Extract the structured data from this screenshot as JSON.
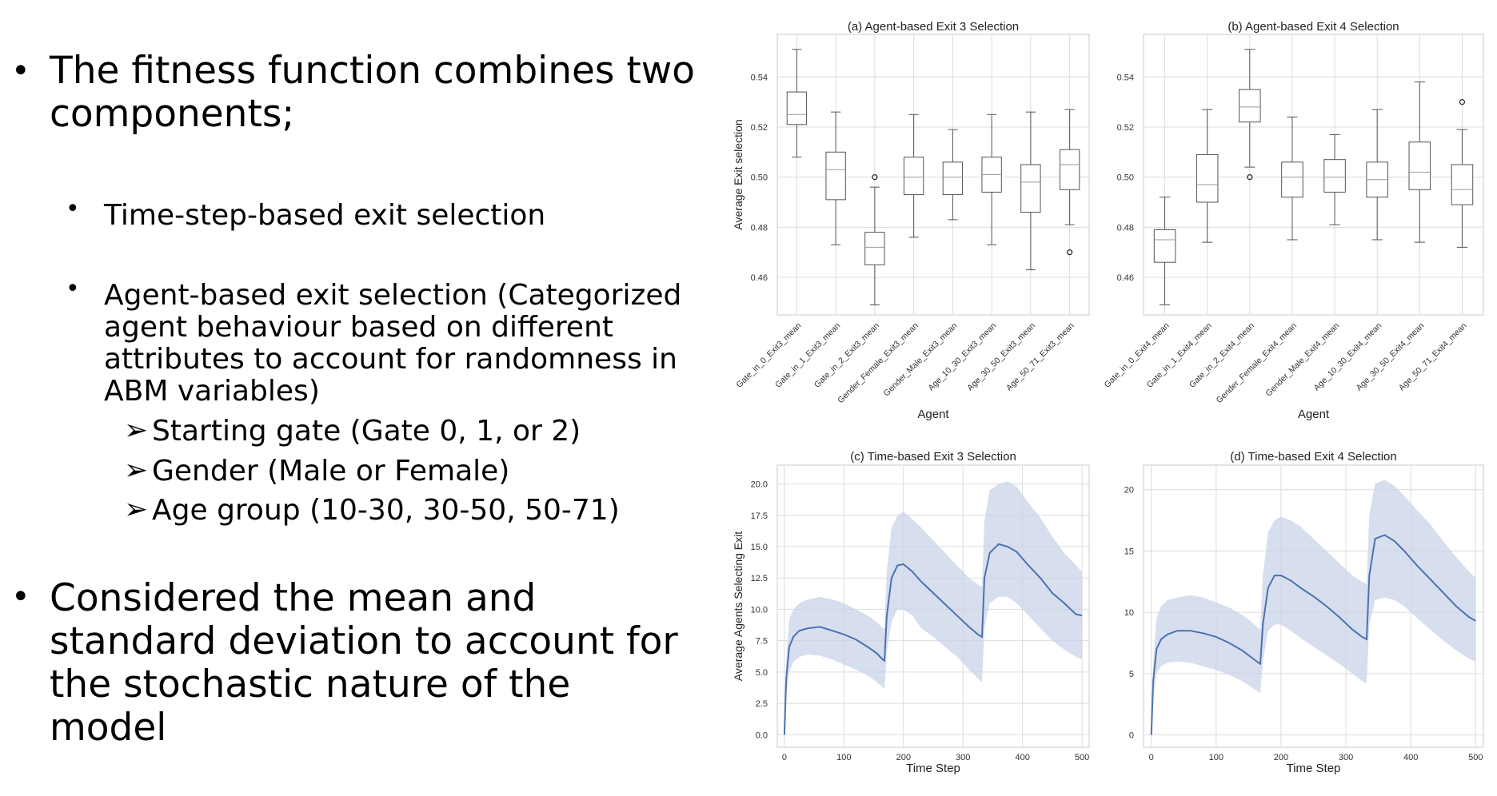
{
  "slide": {
    "bullets": [
      {
        "text": "The fitness function combines two components;",
        "level": 1
      },
      {
        "text": "Time-step-based exit selection",
        "level": 2
      },
      {
        "text": "Agent-based exit selection (Categorized agent behaviour based on different attributes to account for randomness in ABM variables)",
        "level": 2
      },
      {
        "text": "Starting gate (Gate 0, 1, or 2)",
        "level": 3
      },
      {
        "text": "Gender (Male or Female)",
        "level": 3
      },
      {
        "text": "Age group (10-30, 30-50, 50-71)",
        "level": 3
      },
      {
        "text": "Considered the mean and standard deviation to account for the stochastic nature of the model",
        "level": 1
      }
    ]
  },
  "chart_data": [
    {
      "type": "box",
      "title": "(a) Agent-based Exit 3 Selection",
      "xlabel": "Agent",
      "ylabel": "Average Exit selection",
      "ylim": [
        0.445,
        0.557
      ],
      "yticks": [
        "0.46",
        "0.48",
        "0.50",
        "0.52",
        "0.54"
      ],
      "grid": true,
      "categories": [
        "Gate_in_0_Exit3_mean",
        "Gate_in_1_Exit3_mean",
        "Gate_in_2_Exit3_mean",
        "Gender_Female_Exit3_mean",
        "Gender_Male_Exit3_mean",
        "Age_10_30_Exit3_mean",
        "Age_30_50_Exit3_mean",
        "Age_50_71_Exit3_mean"
      ],
      "boxes": [
        {
          "whislo": 0.508,
          "q1": 0.521,
          "med": 0.525,
          "q3": 0.534,
          "whishi": 0.551,
          "fliers": []
        },
        {
          "whislo": 0.473,
          "q1": 0.491,
          "med": 0.503,
          "q3": 0.51,
          "whishi": 0.526,
          "fliers": []
        },
        {
          "whislo": 0.449,
          "q1": 0.465,
          "med": 0.472,
          "q3": 0.478,
          "whishi": 0.496,
          "fliers": [
            0.5
          ]
        },
        {
          "whislo": 0.476,
          "q1": 0.493,
          "med": 0.5,
          "q3": 0.508,
          "whishi": 0.525,
          "fliers": []
        },
        {
          "whislo": 0.483,
          "q1": 0.493,
          "med": 0.5,
          "q3": 0.506,
          "whishi": 0.519,
          "fliers": []
        },
        {
          "whislo": 0.473,
          "q1": 0.494,
          "med": 0.501,
          "q3": 0.508,
          "whishi": 0.525,
          "fliers": []
        },
        {
          "whislo": 0.463,
          "q1": 0.486,
          "med": 0.498,
          "q3": 0.505,
          "whishi": 0.526,
          "fliers": []
        },
        {
          "whislo": 0.481,
          "q1": 0.495,
          "med": 0.505,
          "q3": 0.511,
          "whishi": 0.527,
          "fliers": [
            0.47
          ]
        }
      ]
    },
    {
      "type": "box",
      "title": "(b) Agent-based Exit 4 Selection",
      "xlabel": "Agent",
      "ylabel": "",
      "ylim": [
        0.445,
        0.557
      ],
      "yticks": [
        "0.46",
        "0.48",
        "0.50",
        "0.52",
        "0.54"
      ],
      "grid": true,
      "categories": [
        "Gate_in_0_Exit4_mean",
        "Gate_in_1_Exit4_mean",
        "Gate_in_2_Exit4_mean",
        "Gender_Female_Exit4_mean",
        "Gender_Male_Exit4_mean",
        "Age_10_30_Exit4_mean",
        "Age_30_50_Exit4_mean",
        "Age_50_71_Exit4_mean"
      ],
      "boxes": [
        {
          "whislo": 0.449,
          "q1": 0.466,
          "med": 0.475,
          "q3": 0.479,
          "whishi": 0.492,
          "fliers": []
        },
        {
          "whislo": 0.474,
          "q1": 0.49,
          "med": 0.497,
          "q3": 0.509,
          "whishi": 0.527,
          "fliers": []
        },
        {
          "whislo": 0.504,
          "q1": 0.522,
          "med": 0.528,
          "q3": 0.535,
          "whishi": 0.551,
          "fliers": [
            0.5
          ]
        },
        {
          "whislo": 0.475,
          "q1": 0.492,
          "med": 0.5,
          "q3": 0.506,
          "whishi": 0.524,
          "fliers": []
        },
        {
          "whislo": 0.481,
          "q1": 0.494,
          "med": 0.5,
          "q3": 0.507,
          "whishi": 0.517,
          "fliers": []
        },
        {
          "whislo": 0.475,
          "q1": 0.492,
          "med": 0.499,
          "q3": 0.506,
          "whishi": 0.527,
          "fliers": []
        },
        {
          "whislo": 0.474,
          "q1": 0.495,
          "med": 0.502,
          "q3": 0.514,
          "whishi": 0.538,
          "fliers": []
        },
        {
          "whislo": 0.472,
          "q1": 0.489,
          "med": 0.495,
          "q3": 0.505,
          "whishi": 0.519,
          "fliers": [
            0.53
          ]
        }
      ]
    },
    {
      "type": "area",
      "title": "(c) Time-based Exit 3 Selection",
      "xlabel": "Time Step",
      "ylabel": "Average Agents Selecting Exit",
      "xlim": [
        -12,
        512
      ],
      "ylim": [
        -1,
        21.5
      ],
      "xticks": [
        "0",
        "100",
        "200",
        "300",
        "400",
        "500"
      ],
      "yticks": [
        "0.0",
        "2.5",
        "5.0",
        "7.5",
        "10.0",
        "12.5",
        "15.0",
        "17.5",
        "20.0"
      ],
      "grid": true,
      "x": [
        0,
        3,
        8,
        15,
        25,
        40,
        60,
        80,
        100,
        120,
        140,
        155,
        165,
        168,
        172,
        180,
        190,
        200,
        215,
        230,
        250,
        270,
        290,
        310,
        325,
        332,
        336,
        345,
        360,
        375,
        390,
        410,
        430,
        450,
        470,
        490,
        500
      ],
      "mean": [
        0.0,
        4.5,
        7.0,
        7.8,
        8.3,
        8.5,
        8.6,
        8.3,
        8.0,
        7.6,
        7.0,
        6.5,
        6.0,
        5.9,
        9.5,
        12.5,
        13.5,
        13.6,
        13.0,
        12.2,
        11.3,
        10.4,
        9.5,
        8.6,
        8.0,
        7.8,
        12.5,
        14.5,
        15.2,
        15.0,
        14.6,
        13.5,
        12.5,
        11.3,
        10.5,
        9.6,
        9.5
      ],
      "std_upper": [
        0.0,
        6.0,
        9.2,
        10.0,
        10.5,
        10.8,
        11.0,
        10.8,
        10.5,
        10.0,
        9.5,
        9.0,
        8.5,
        8.5,
        13.0,
        16.5,
        17.5,
        17.8,
        17.2,
        16.5,
        15.5,
        14.5,
        13.5,
        12.5,
        12.0,
        11.8,
        17.0,
        19.5,
        20.0,
        20.2,
        19.8,
        18.5,
        17.3,
        15.8,
        14.5,
        13.5,
        13.0
      ],
      "std_lower": [
        0.0,
        3.0,
        5.0,
        5.8,
        6.2,
        6.4,
        6.3,
        6.0,
        5.6,
        5.2,
        4.7,
        4.2,
        3.8,
        3.6,
        6.5,
        9.0,
        10.0,
        10.0,
        9.5,
        8.5,
        7.8,
        7.0,
        6.2,
        5.2,
        4.5,
        4.2,
        8.5,
        10.5,
        11.0,
        11.0,
        10.5,
        9.5,
        8.5,
        7.5,
        6.8,
        6.2,
        6.0
      ]
    },
    {
      "type": "area",
      "title": "(d) Time-based Exit 4 Selection",
      "xlabel": "Time Step",
      "ylabel": "",
      "xlim": [
        -12,
        512
      ],
      "ylim": [
        -1,
        22
      ],
      "xticks": [
        "0",
        "100",
        "200",
        "300",
        "400",
        "500"
      ],
      "yticks": [
        "0",
        "5",
        "10",
        "15",
        "20"
      ],
      "grid": true,
      "x": [
        0,
        3,
        8,
        15,
        25,
        40,
        60,
        80,
        100,
        120,
        140,
        155,
        165,
        168,
        172,
        180,
        190,
        200,
        215,
        230,
        250,
        270,
        290,
        310,
        325,
        332,
        336,
        345,
        360,
        375,
        390,
        410,
        430,
        450,
        470,
        490,
        500
      ],
      "mean": [
        0.0,
        4.5,
        7.0,
        7.8,
        8.2,
        8.5,
        8.5,
        8.3,
        8.0,
        7.5,
        6.9,
        6.3,
        5.9,
        5.8,
        9.0,
        12.0,
        13.0,
        13.0,
        12.6,
        12.0,
        11.3,
        10.5,
        9.6,
        8.6,
        8.0,
        7.8,
        13.0,
        16.0,
        16.3,
        15.8,
        15.0,
        13.8,
        12.7,
        11.6,
        10.5,
        9.6,
        9.3
      ],
      "std_upper": [
        0.0,
        6.0,
        9.5,
        10.5,
        11.0,
        11.2,
        11.4,
        11.2,
        10.8,
        10.4,
        9.8,
        9.2,
        8.7,
        8.6,
        13.0,
        16.5,
        17.5,
        17.8,
        17.5,
        17.0,
        16.0,
        15.0,
        14.0,
        13.0,
        12.5,
        12.3,
        18.0,
        20.5,
        20.8,
        20.3,
        19.5,
        18.3,
        17.2,
        15.8,
        14.5,
        13.3,
        12.8
      ],
      "std_lower": [
        0.0,
        3.0,
        5.0,
        5.6,
        5.9,
        6.0,
        5.9,
        5.6,
        5.3,
        4.9,
        4.4,
        3.9,
        3.5,
        3.4,
        6.0,
        8.5,
        9.0,
        9.0,
        8.5,
        7.9,
        7.2,
        6.5,
        5.8,
        5.0,
        4.4,
        4.2,
        9.0,
        11.0,
        11.2,
        11.0,
        10.5,
        9.5,
        8.6,
        7.7,
        6.9,
        6.2,
        6.0
      ]
    }
  ],
  "colors": {
    "line": "#4c72b0",
    "band": "#c9d3e8",
    "box": "#555555",
    "grid": "#dcdcdc",
    "frame": "#c8c8c8"
  }
}
